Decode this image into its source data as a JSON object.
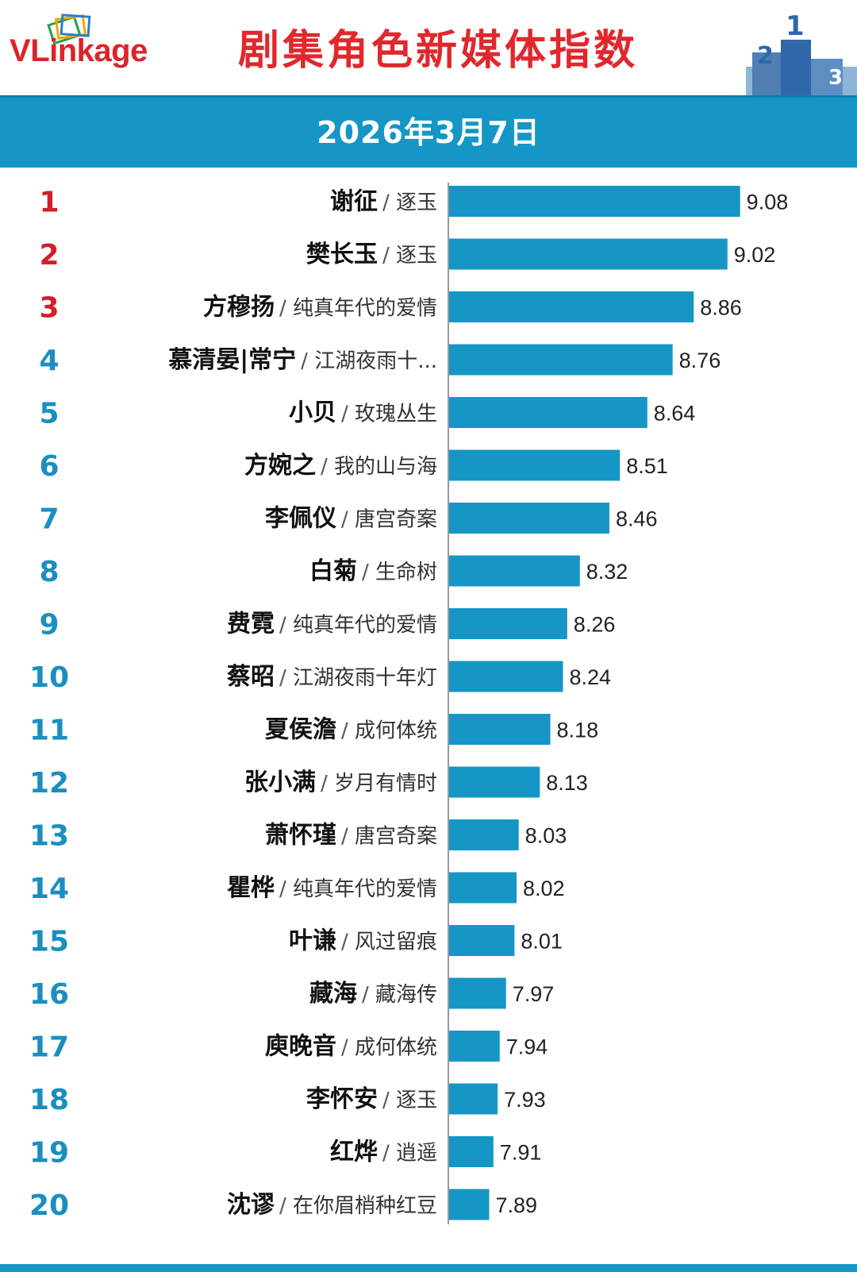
{
  "header": {
    "logo": {
      "v": "V",
      "l": "L",
      "rest": "inkage"
    },
    "title": "剧集角色新媒体指数",
    "date": "2026年3月7日"
  },
  "colors": {
    "accent": "#1596c6",
    "title": "#e0282d",
    "rank_top": "#d01f2a",
    "rank_other": "#1a8fbf",
    "bar": "#1596c6"
  },
  "chart_data": {
    "type": "bar",
    "orientation": "horizontal",
    "title": "剧集角色新媒体指数",
    "subtitle": "2026年3月7日",
    "xlim": [
      7.7,
      9.1
    ],
    "grid": false,
    "items": [
      {
        "rank": "1",
        "name": "谢征",
        "show": "逐玉",
        "value": 9.08,
        "label": "9.08"
      },
      {
        "rank": "2",
        "name": "樊长玉",
        "show": "逐玉",
        "value": 9.02,
        "label": "9.02"
      },
      {
        "rank": "3",
        "name": "方穆扬",
        "show": "纯真年代的爱情",
        "value": 8.86,
        "label": "8.86"
      },
      {
        "rank": "4",
        "name": "慕清晏|常宁",
        "show": "江湖夜雨十...",
        "value": 8.76,
        "label": "8.76"
      },
      {
        "rank": "5",
        "name": "小贝",
        "show": "玫瑰丛生",
        "value": 8.64,
        "label": "8.64"
      },
      {
        "rank": "6",
        "name": "方婉之",
        "show": "我的山与海",
        "value": 8.51,
        "label": "8.51"
      },
      {
        "rank": "7",
        "name": "李佩仪",
        "show": "唐宫奇案",
        "value": 8.46,
        "label": "8.46"
      },
      {
        "rank": "8",
        "name": "白菊",
        "show": "生命树",
        "value": 8.32,
        "label": "8.32"
      },
      {
        "rank": "9",
        "name": "费霓",
        "show": "纯真年代的爱情",
        "value": 8.26,
        "label": "8.26"
      },
      {
        "rank": "10",
        "name": "蔡昭",
        "show": "江湖夜雨十年灯",
        "value": 8.24,
        "label": "8.24"
      },
      {
        "rank": "11",
        "name": "夏侯澹",
        "show": "成何体统",
        "value": 8.18,
        "label": "8.18"
      },
      {
        "rank": "12",
        "name": "张小满",
        "show": "岁月有情时",
        "value": 8.13,
        "label": "8.13"
      },
      {
        "rank": "13",
        "name": "萧怀瑾",
        "show": "唐宫奇案",
        "value": 8.03,
        "label": "8.03"
      },
      {
        "rank": "14",
        "name": "瞿桦",
        "show": "纯真年代的爱情",
        "value": 8.02,
        "label": "8.02"
      },
      {
        "rank": "15",
        "name": "叶谦",
        "show": "风过留痕",
        "value": 8.01,
        "label": "8.01"
      },
      {
        "rank": "16",
        "name": "藏海",
        "show": "藏海传",
        "value": 7.97,
        "label": "7.97"
      },
      {
        "rank": "17",
        "name": "庾晚音",
        "show": "成何体统",
        "value": 7.94,
        "label": "7.94"
      },
      {
        "rank": "18",
        "name": "李怀安",
        "show": "逐玉",
        "value": 7.93,
        "label": "7.93"
      },
      {
        "rank": "19",
        "name": "红烨",
        "show": "逍遥",
        "value": 7.91,
        "label": "7.91"
      },
      {
        "rank": "20",
        "name": "沈谬",
        "show": "在你眉梢种红豆",
        "value": 7.89,
        "label": "7.89"
      }
    ]
  }
}
